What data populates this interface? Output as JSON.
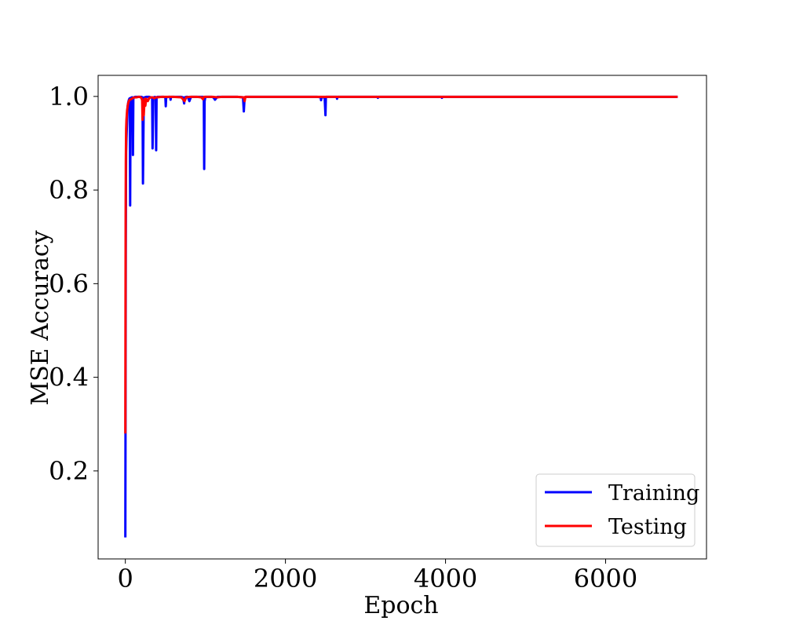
{
  "chart_data": {
    "type": "line",
    "title": "",
    "xlabel": "Epoch",
    "ylabel": "MSE Accuracy",
    "xlim": [
      -340,
      7260
    ],
    "ylim": [
      0.012,
      1.045
    ],
    "xticks": [
      0,
      2000,
      4000,
      6000
    ],
    "yticks": [
      0.2,
      0.4,
      0.6,
      0.8,
      1.0
    ],
    "xtick_labels": [
      "0",
      "2000",
      "4000",
      "6000"
    ],
    "ytick_labels": [
      "0.2",
      "0.4",
      "0.6",
      "0.8",
      "1.0"
    ],
    "grid": false,
    "legend_position": "bottom-right",
    "series": [
      {
        "name": "Training",
        "color": "#0000ff",
        "x": [
          0,
          2,
          4,
          6,
          8,
          10,
          14,
          18,
          22,
          26,
          30,
          35,
          40,
          45,
          50,
          55,
          60,
          65,
          70,
          80,
          90,
          95,
          100,
          110,
          120,
          140,
          160,
          180,
          200,
          215,
          220,
          230,
          240,
          260,
          280,
          300,
          320,
          335,
          340,
          350,
          360,
          370,
          380,
          385,
          390,
          400,
          420,
          450,
          480,
          500,
          505,
          510,
          540,
          560,
          565,
          570,
          600,
          650,
          700,
          720,
          735,
          740,
          760,
          780,
          800,
          820,
          840,
          860,
          900,
          940,
          970,
          980,
          985,
          990,
          1000,
          1040,
          1080,
          1100,
          1120,
          1150,
          1170,
          1200,
          1300,
          1400,
          1470,
          1480,
          1490,
          1500,
          1600,
          1700,
          1800,
          1900,
          2000,
          2100,
          2200,
          2300,
          2400,
          2440,
          2445,
          2450,
          2490,
          2500,
          2505,
          2510,
          2550,
          2600,
          2640,
          2645,
          2650,
          2700,
          2800,
          2900,
          3000,
          3100,
          3150,
          3155,
          3160,
          3300,
          3500,
          3700,
          3800,
          3900,
          3950,
          3955,
          3960,
          4000,
          4500,
          5000,
          5500,
          6000,
          6500,
          6900
        ],
        "values": [
          0.058,
          0.28,
          0.52,
          0.7,
          0.82,
          0.88,
          0.91,
          0.93,
          0.95,
          0.97,
          0.98,
          0.986,
          0.99,
          0.993,
          0.995,
          0.996,
          0.767,
          0.995,
          0.997,
          0.998,
          0.998,
          0.875,
          0.997,
          0.998,
          0.999,
          0.999,
          0.999,
          0.999,
          0.999,
          0.998,
          0.814,
          0.997,
          0.998,
          0.999,
          0.999,
          0.999,
          0.998,
          0.997,
          0.889,
          0.998,
          0.998,
          0.999,
          0.998,
          0.885,
          0.998,
          0.999,
          0.999,
          0.999,
          0.999,
          0.998,
          0.979,
          0.998,
          0.999,
          0.999,
          0.993,
          0.999,
          0.999,
          0.999,
          0.999,
          0.998,
          0.985,
          0.998,
          0.999,
          0.999,
          0.99,
          0.999,
          0.999,
          0.999,
          0.999,
          0.999,
          0.999,
          0.998,
          0.845,
          0.99,
          0.999,
          0.999,
          0.999,
          0.998,
          0.993,
          0.999,
          0.999,
          0.999,
          0.999,
          0.999,
          0.998,
          0.968,
          0.998,
          0.999,
          0.999,
          0.999,
          0.999,
          0.999,
          0.999,
          0.999,
          0.999,
          0.999,
          0.999,
          0.998,
          0.992,
          0.998,
          0.998,
          0.96,
          0.998,
          0.999,
          0.999,
          0.999,
          0.999,
          0.995,
          0.999,
          0.999,
          0.999,
          0.999,
          0.999,
          0.999,
          0.999,
          0.997,
          0.999,
          0.999,
          0.999,
          0.999,
          0.999,
          0.999,
          0.999,
          0.997,
          0.999,
          0.999,
          0.999,
          0.999,
          0.999,
          0.999,
          0.999,
          0.999
        ]
      },
      {
        "name": "Testing",
        "color": "#ff0000",
        "x": [
          0,
          2,
          4,
          6,
          8,
          10,
          14,
          18,
          22,
          26,
          30,
          35,
          40,
          45,
          50,
          60,
          70,
          80,
          90,
          100,
          120,
          140,
          160,
          180,
          200,
          210,
          215,
          220,
          230,
          240,
          250,
          260,
          280,
          300,
          320,
          340,
          360,
          380,
          400,
          450,
          500,
          550,
          600,
          700,
          740,
          760,
          800,
          900,
          950,
          970,
          980,
          1000,
          1050,
          1100,
          1150,
          1200,
          1400,
          1480,
          1490,
          1500,
          1600,
          2000,
          2500,
          3000,
          3500,
          4000,
          4500,
          5000,
          5500,
          6000,
          6500,
          6900
        ],
        "values": [
          0.28,
          0.55,
          0.75,
          0.86,
          0.9,
          0.93,
          0.95,
          0.96,
          0.97,
          0.975,
          0.98,
          0.985,
          0.988,
          0.99,
          0.992,
          0.993,
          0.994,
          0.995,
          0.996,
          0.997,
          0.998,
          0.998,
          0.999,
          0.999,
          0.997,
          0.992,
          0.95,
          0.99,
          0.96,
          0.995,
          0.98,
          0.995,
          0.99,
          0.997,
          0.998,
          0.998,
          0.996,
          0.998,
          0.998,
          0.999,
          0.999,
          0.999,
          0.999,
          0.998,
          0.99,
          0.998,
          0.999,
          0.999,
          0.998,
          0.994,
          0.999,
          0.999,
          0.999,
          0.999,
          0.998,
          0.999,
          0.999,
          0.998,
          0.99,
          0.999,
          0.999,
          0.999,
          0.999,
          0.999,
          0.999,
          0.999,
          0.999,
          0.999,
          0.999,
          0.999,
          0.999,
          0.999
        ]
      }
    ]
  }
}
